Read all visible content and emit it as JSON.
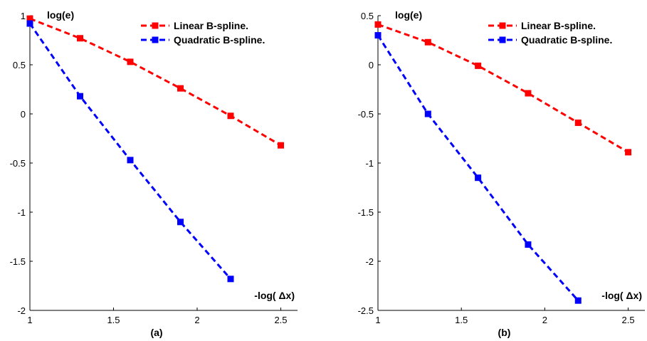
{
  "chart_data": [
    {
      "type": "line",
      "panel_label": "(a)",
      "ylabel": "log(e)",
      "xlabel": "-log( Δx)",
      "xlim": [
        1,
        2.6
      ],
      "ylim": [
        -2,
        1
      ],
      "xticks": [
        1,
        1.5,
        2,
        2.5
      ],
      "yticks": [
        1,
        0.5,
        0,
        -0.5,
        -1,
        -1.5,
        -2
      ],
      "xtick_labels": [
        "1",
        "1.5",
        "2",
        "2.5"
      ],
      "ytick_labels": [
        "1",
        "0.5",
        "0",
        "-0.5",
        "-1",
        "-1.5",
        "-2"
      ],
      "legend_position": "top-right",
      "series": [
        {
          "name": "Linear B-spline.",
          "color": "#ff0000",
          "x": [
            1.0,
            1.3,
            1.6,
            1.9,
            2.2,
            2.5
          ],
          "y": [
            0.97,
            0.77,
            0.53,
            0.26,
            -0.02,
            -0.32
          ]
        },
        {
          "name": "Quadratic B-spline.",
          "color": "#0000ff",
          "x": [
            1.0,
            1.3,
            1.6,
            1.9,
            2.2
          ],
          "y": [
            0.92,
            0.18,
            -0.47,
            -1.1,
            -1.68
          ]
        }
      ]
    },
    {
      "type": "line",
      "panel_label": "(b)",
      "ylabel": "log(e)",
      "xlabel": "-log( Δx)",
      "xlim": [
        1,
        2.6
      ],
      "ylim": [
        -2.5,
        0.5
      ],
      "xticks": [
        1,
        1.5,
        2,
        2.5
      ],
      "yticks": [
        0.5,
        0,
        -0.5,
        -1,
        -1.5,
        -2,
        -2.5
      ],
      "xtick_labels": [
        "1",
        "1.5",
        "2",
        "2.5"
      ],
      "ytick_labels": [
        "0.5",
        "0",
        "-0.5",
        "-1",
        "-1.5",
        "-2",
        "-2.5"
      ],
      "legend_position": "top-right",
      "series": [
        {
          "name": "Linear B-spline.",
          "color": "#ff0000",
          "x": [
            1.0,
            1.3,
            1.6,
            1.9,
            2.2,
            2.5
          ],
          "y": [
            0.41,
            0.23,
            -0.01,
            -0.29,
            -0.59,
            -0.89
          ]
        },
        {
          "name": "Quadratic B-spline.",
          "color": "#0000ff",
          "x": [
            1.0,
            1.3,
            1.6,
            1.9,
            2.2
          ],
          "y": [
            0.3,
            -0.5,
            -1.15,
            -1.83,
            -2.4
          ]
        }
      ]
    }
  ]
}
